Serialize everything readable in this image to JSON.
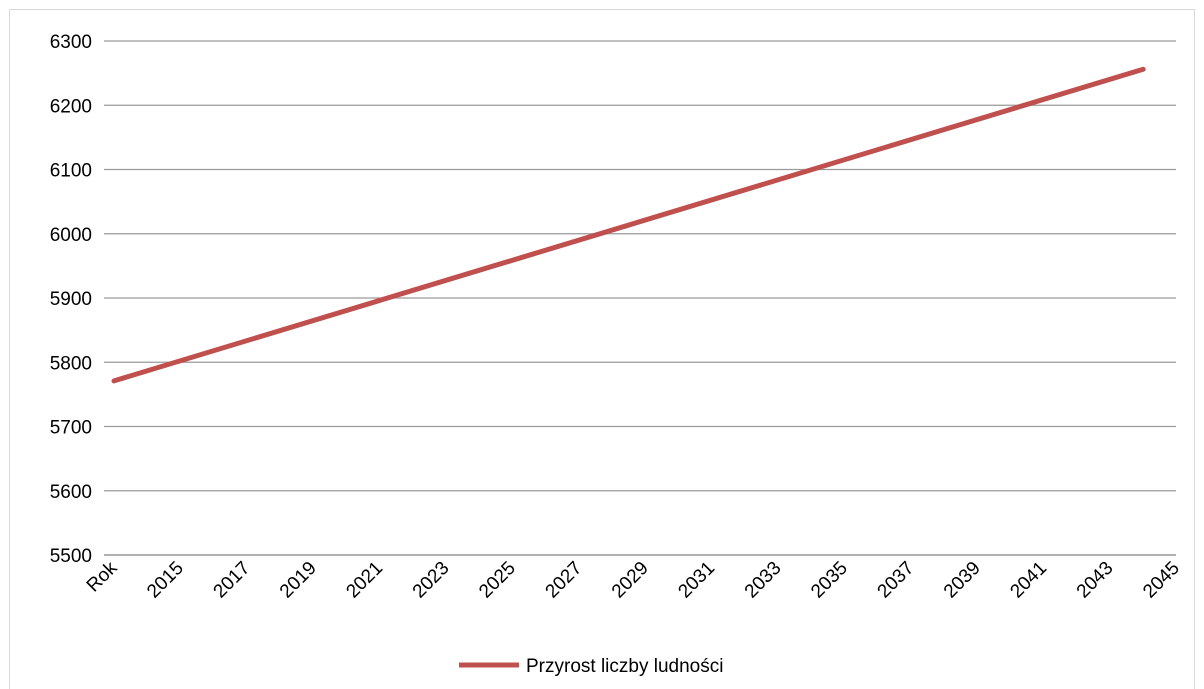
{
  "chart_data": {
    "type": "line",
    "categories": [
      "Rok",
      "2015",
      "2017",
      "2019",
      "2021",
      "2023",
      "2025",
      "2027",
      "2029",
      "2031",
      "2033",
      "2035",
      "2037",
      "2039",
      "2041",
      "2043",
      "2045"
    ],
    "series": [
      {
        "name": "Przyrost liczby ludności",
        "color": "#c0504d",
        "x_start_index": 0,
        "x_end_index": 15.5,
        "y_start": 5771,
        "y_end": 6256
      }
    ],
    "xlabel": "",
    "ylabel": "",
    "ylim": [
      5500,
      6300
    ],
    "yticks": [
      5500,
      5600,
      5700,
      5800,
      5900,
      6000,
      6100,
      6200,
      6300
    ],
    "grid": true,
    "legend": "bottom"
  }
}
